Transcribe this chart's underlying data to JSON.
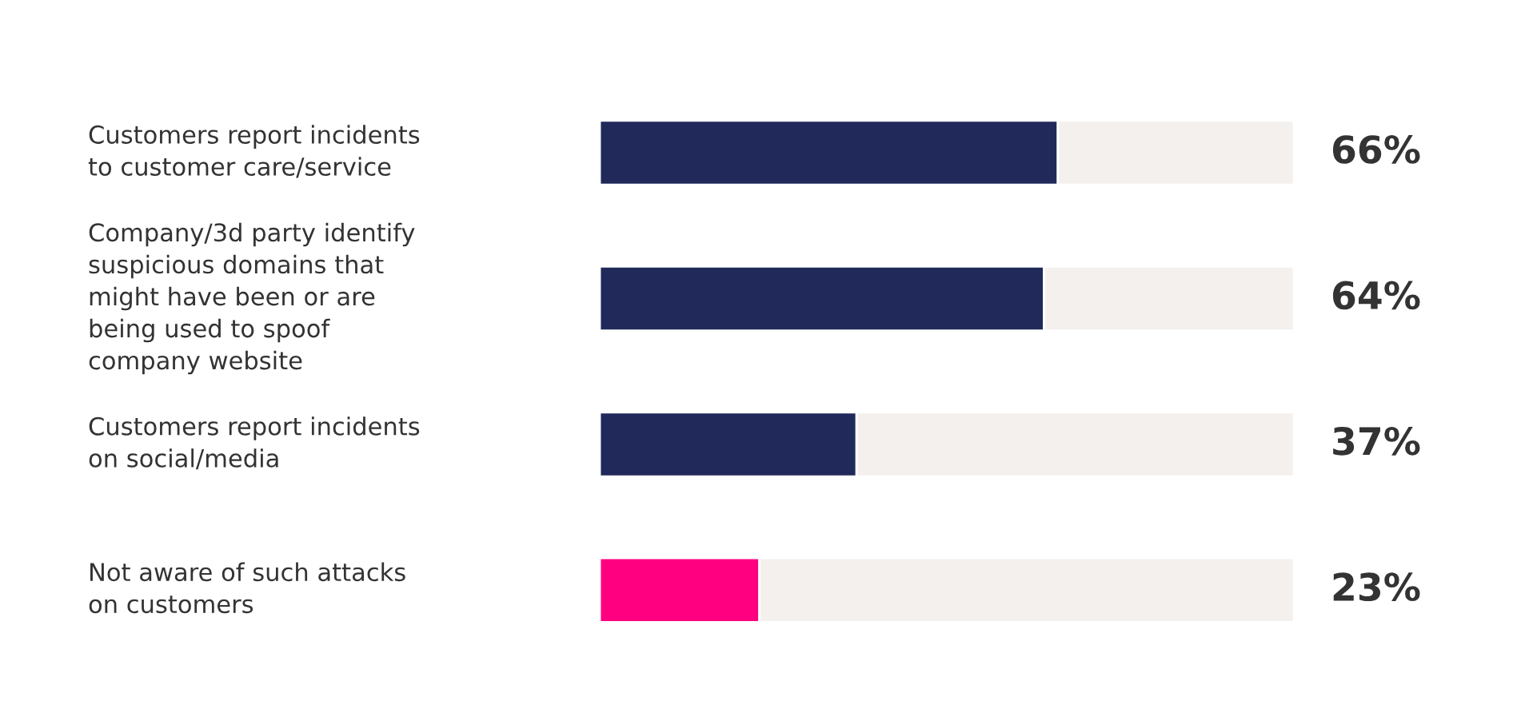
{
  "chart_data": {
    "type": "bar",
    "orientation": "horizontal",
    "stacked": true,
    "categories": [
      "Customers report incidents\nto customer care/service",
      "Company/3d party identify\nsuspicious domains that\nmight have been or are\nbeing used to spoof\ncompany website",
      "Customers report incidents\non social/media",
      "Not aware of such attacks\non customers"
    ],
    "series": [
      {
        "colors": [
          "#20295a",
          "#20295a",
          "#20295a",
          "#ff0080"
        ],
        "values": [
          66,
          64,
          37,
          23
        ],
        "value_labels": [
          "66%",
          "64%",
          "37%",
          "23%"
        ]
      },
      {
        "color": "#f3f0ee",
        "values": [
          34,
          36,
          63,
          77
        ]
      }
    ],
    "xlim": [
      0,
      100
    ]
  }
}
